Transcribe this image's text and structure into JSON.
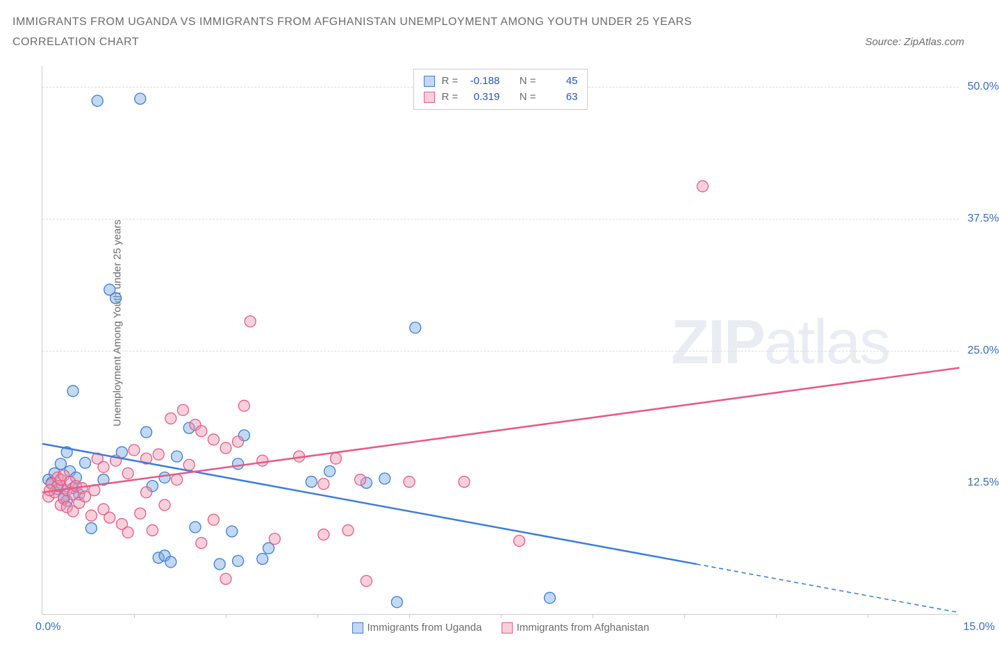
{
  "title_line1": "IMMIGRANTS FROM UGANDA VS IMMIGRANTS FROM AFGHANISTAN UNEMPLOYMENT AMONG YOUTH UNDER 25 YEARS",
  "title_line2": "CORRELATION CHART",
  "source_prefix": "Source: ",
  "source_name": "ZipAtlas.com",
  "ylabel": "Unemployment Among Youth under 25 years",
  "watermark_bold": "ZIP",
  "watermark_light": "atlas",
  "chart": {
    "type": "scatter",
    "x_min": 0,
    "x_max": 15,
    "y_min": 0,
    "y_max": 52,
    "y_gridlines": [
      25,
      37.5,
      50
    ],
    "y_tick_labels": [
      "12.5%",
      "25.0%",
      "37.5%",
      "50.0%"
    ],
    "y_tick_values": [
      12.5,
      25,
      37.5,
      50
    ],
    "x_ticks": [
      1.5,
      3,
      4.5,
      6,
      7.5,
      9,
      10.5,
      12,
      13.5
    ],
    "x_left_label": "0.0%",
    "x_right_label": "15.0%",
    "series": [
      {
        "name": "Immigrants from Uganda",
        "color": "#3b7dd8",
        "fill": "rgba(120,170,225,0.45)",
        "R": "-0.188",
        "N": "45",
        "points": [
          [
            0.1,
            12.8
          ],
          [
            0.2,
            13.4
          ],
          [
            0.25,
            11.9
          ],
          [
            0.3,
            14.3
          ],
          [
            0.3,
            12.2
          ],
          [
            0.35,
            11.2
          ],
          [
            0.4,
            15.4
          ],
          [
            0.4,
            10.8
          ],
          [
            0.45,
            13.6
          ],
          [
            0.5,
            12.0
          ],
          [
            0.5,
            21.2
          ],
          [
            0.6,
            11.4
          ],
          [
            0.7,
            14.4
          ],
          [
            0.8,
            8.2
          ],
          [
            0.9,
            48.7
          ],
          [
            1.0,
            12.8
          ],
          [
            1.1,
            30.8
          ],
          [
            1.2,
            30.0
          ],
          [
            1.3,
            15.4
          ],
          [
            1.6,
            48.9
          ],
          [
            1.7,
            17.3
          ],
          [
            1.8,
            12.2
          ],
          [
            1.9,
            5.4
          ],
          [
            2.0,
            5.6
          ],
          [
            2.0,
            13.0
          ],
          [
            2.1,
            5.0
          ],
          [
            2.2,
            15.0
          ],
          [
            2.4,
            17.7
          ],
          [
            2.5,
            8.3
          ],
          [
            2.9,
            4.8
          ],
          [
            3.1,
            7.9
          ],
          [
            3.2,
            5.1
          ],
          [
            3.2,
            14.3
          ],
          [
            3.3,
            17.0
          ],
          [
            3.6,
            5.3
          ],
          [
            3.7,
            6.3
          ],
          [
            4.4,
            12.6
          ],
          [
            4.7,
            13.6
          ],
          [
            5.3,
            12.5
          ],
          [
            5.6,
            12.9
          ],
          [
            5.8,
            1.2
          ],
          [
            6.1,
            27.2
          ],
          [
            8.3,
            1.6
          ],
          [
            0.15,
            12.5
          ],
          [
            0.55,
            13.0
          ]
        ],
        "trend": {
          "x1": 0,
          "y1": 16.2,
          "x2": 10.7,
          "y2": 4.8,
          "dash_x2": 15,
          "dash_y2": 0.2
        }
      },
      {
        "name": "Immigrants from Afghanistan",
        "color": "#e85a84",
        "fill": "rgba(240,150,175,0.45)",
        "R": "0.319",
        "N": "63",
        "points": [
          [
            0.1,
            11.2
          ],
          [
            0.15,
            12.4
          ],
          [
            0.2,
            11.6
          ],
          [
            0.25,
            13.0
          ],
          [
            0.25,
            12.2
          ],
          [
            0.3,
            10.4
          ],
          [
            0.3,
            12.8
          ],
          [
            0.35,
            11.0
          ],
          [
            0.35,
            13.2
          ],
          [
            0.4,
            11.8
          ],
          [
            0.4,
            10.2
          ],
          [
            0.45,
            12.6
          ],
          [
            0.5,
            11.4
          ],
          [
            0.5,
            9.8
          ],
          [
            0.55,
            12.2
          ],
          [
            0.6,
            10.6
          ],
          [
            0.65,
            12.0
          ],
          [
            0.7,
            11.2
          ],
          [
            0.8,
            9.4
          ],
          [
            0.85,
            11.8
          ],
          [
            0.9,
            14.8
          ],
          [
            1.0,
            10.0
          ],
          [
            1.0,
            14.0
          ],
          [
            1.1,
            9.2
          ],
          [
            1.2,
            14.6
          ],
          [
            1.3,
            8.6
          ],
          [
            1.4,
            13.4
          ],
          [
            1.4,
            7.8
          ],
          [
            1.5,
            15.6
          ],
          [
            1.6,
            9.6
          ],
          [
            1.7,
            11.6
          ],
          [
            1.7,
            14.8
          ],
          [
            1.8,
            8.0
          ],
          [
            1.9,
            15.2
          ],
          [
            2.0,
            10.4
          ],
          [
            2.1,
            18.6
          ],
          [
            2.2,
            12.8
          ],
          [
            2.3,
            19.4
          ],
          [
            2.4,
            14.2
          ],
          [
            2.5,
            18.0
          ],
          [
            2.6,
            6.8
          ],
          [
            2.6,
            17.4
          ],
          [
            2.8,
            16.6
          ],
          [
            2.8,
            9.0
          ],
          [
            3.0,
            15.8
          ],
          [
            3.0,
            3.4
          ],
          [
            3.2,
            16.4
          ],
          [
            3.3,
            19.8
          ],
          [
            3.4,
            27.8
          ],
          [
            3.6,
            14.6
          ],
          [
            3.8,
            7.2
          ],
          [
            4.2,
            15.0
          ],
          [
            4.6,
            7.6
          ],
          [
            4.6,
            12.4
          ],
          [
            4.8,
            14.8
          ],
          [
            5.0,
            8.0
          ],
          [
            5.2,
            12.8
          ],
          [
            5.3,
            3.2
          ],
          [
            6.0,
            12.6
          ],
          [
            6.9,
            12.6
          ],
          [
            7.8,
            7.0
          ],
          [
            10.8,
            40.6
          ],
          [
            0.12,
            11.8
          ]
        ],
        "trend": {
          "x1": 0,
          "y1": 11.6,
          "x2": 15,
          "y2": 23.4
        }
      }
    ]
  },
  "legend_R_label": "R =",
  "legend_N_label": "N ="
}
